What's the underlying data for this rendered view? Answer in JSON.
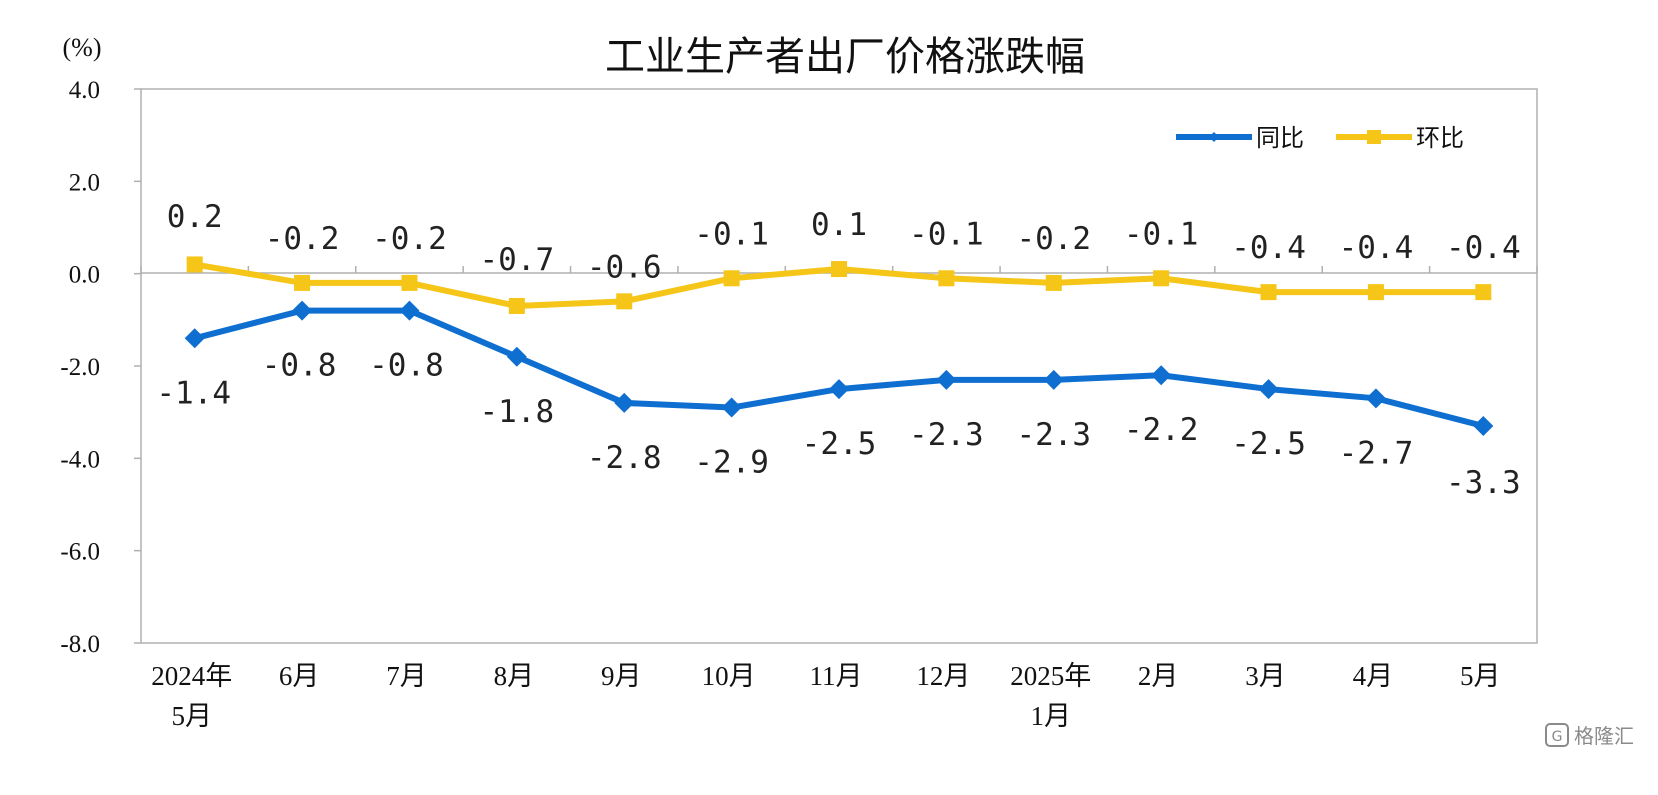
{
  "chart_data": {
    "type": "line",
    "title": "工业生产者出厂价格涨跌幅",
    "unit_label": "(%)",
    "ylim": [
      -8.0,
      4.0
    ],
    "y_ticks": [
      "4.0",
      "2.0",
      "0.0",
      "-2.0",
      "-4.0",
      "-6.0",
      "-8.0"
    ],
    "categories": [
      [
        "2024年",
        "5月"
      ],
      [
        "6月"
      ],
      [
        "7月"
      ],
      [
        "8月"
      ],
      [
        "9月"
      ],
      [
        "10月"
      ],
      [
        "11月"
      ],
      [
        "12月"
      ],
      [
        "2025年",
        "1月"
      ],
      [
        "2月"
      ],
      [
        "3月"
      ],
      [
        "4月"
      ],
      [
        "5月"
      ]
    ],
    "series": [
      {
        "name": "同比",
        "color": "#0f6fd1",
        "marker": "diamond",
        "values": [
          -1.4,
          -0.8,
          -0.8,
          -1.8,
          -2.8,
          -2.9,
          -2.5,
          -2.3,
          -2.3,
          -2.2,
          -2.5,
          -2.7,
          -3.3
        ],
        "labels": [
          "-1.4",
          "-0.8",
          "-0.8",
          "-1.8",
          "-2.8",
          "-2.9",
          "-2.5",
          "-2.3",
          "-2.3",
          "-2.2",
          "-2.5",
          "-2.7",
          "-3.3"
        ]
      },
      {
        "name": "环比",
        "color": "#f5c518",
        "marker": "square",
        "values": [
          0.2,
          -0.2,
          -0.2,
          -0.7,
          -0.6,
          -0.1,
          0.1,
          -0.1,
          -0.2,
          -0.1,
          -0.4,
          -0.4,
          -0.4
        ],
        "labels": [
          "0.2",
          "-0.2",
          "-0.2",
          "-0.7",
          "-0.6",
          "-0.1",
          "0.1",
          "-0.1",
          "-0.2",
          "-0.1",
          "-0.4",
          "-0.4",
          "-0.4"
        ]
      }
    ],
    "legend_position": "top-right",
    "grid": false
  },
  "watermark": {
    "text": "格隆汇"
  }
}
